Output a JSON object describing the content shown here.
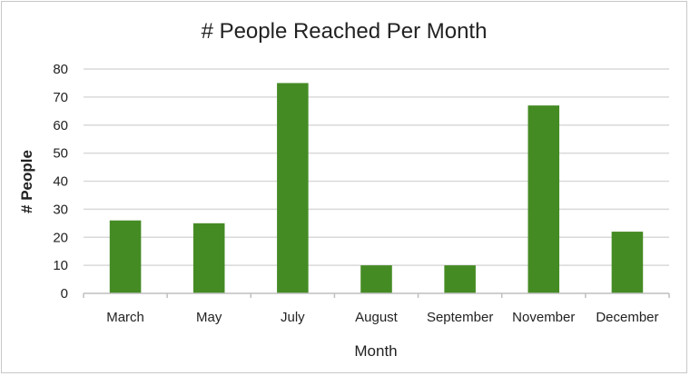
{
  "chart_data": {
    "type": "bar",
    "title": "# People Reached Per Month",
    "xlabel": "Month",
    "ylabel": "# People",
    "categories": [
      "March",
      "May",
      "July",
      "August",
      "September",
      "November",
      "December"
    ],
    "values": [
      26,
      25,
      75,
      10,
      10,
      67,
      22
    ],
    "ylim": [
      0,
      80
    ],
    "yticks": [
      "0",
      "10",
      "20",
      "30",
      "40",
      "50",
      "60",
      "70",
      "80"
    ],
    "grid": true,
    "legend": "none",
    "colors": {
      "bar": "#458B24",
      "grid": "#d9d9d9",
      "axis": "#bfbfbf",
      "text": "#222222",
      "frame": "#c8c8c8"
    }
  }
}
